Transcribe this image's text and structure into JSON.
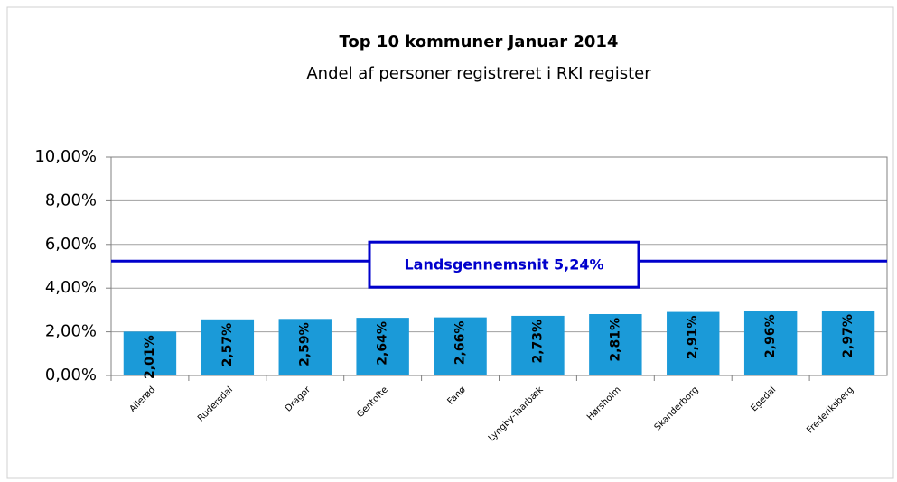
{
  "chart_data": {
    "type": "bar",
    "title": "Top 10 kommuner Januar 2014",
    "subtitle": "Andel af personer registreret i RKI register",
    "categories": [
      "Allerød",
      "Rudersdal",
      "Dragør",
      "Gentofte",
      "Fanø",
      "Lyngby-Taarbæk",
      "Hørsholm",
      "Skanderborg",
      "Egedal",
      "Frederiksberg"
    ],
    "values": [
      2.01,
      2.57,
      2.59,
      2.64,
      2.66,
      2.73,
      2.81,
      2.91,
      2.96,
      2.97
    ],
    "value_labels": [
      "2,01%",
      "2,57%",
      "2,59%",
      "2,64%",
      "2,66%",
      "2,73%",
      "2,81%",
      "2,91%",
      "2,96%",
      "2,97%"
    ],
    "color": "#1b9ad8",
    "ylim": [
      0,
      10
    ],
    "yticks": [
      {
        "value": 0,
        "label": "0,00%"
      },
      {
        "value": 2,
        "label": "2,00%"
      },
      {
        "value": 4,
        "label": "4,00%"
      },
      {
        "value": 6,
        "label": "6,00%"
      },
      {
        "value": 8,
        "label": "8,00%"
      },
      {
        "value": 10,
        "label": "10,00%"
      }
    ],
    "grid": true,
    "reference_line": {
      "value": 5.24,
      "label": "Landsgennemsnit 5,24%",
      "color": "#0000cc"
    }
  }
}
